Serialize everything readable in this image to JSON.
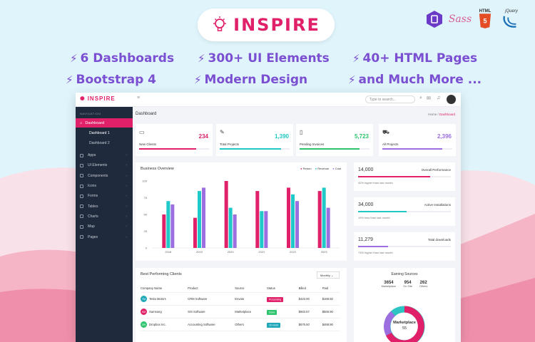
{
  "banner": {
    "logo_text": "INSPIRE",
    "features": [
      {
        "label": "6 Dashboards"
      },
      {
        "label": "300+ UI Elements"
      },
      {
        "label": "40+ HTML Pages"
      },
      {
        "label": "Bootstrap 4"
      },
      {
        "label": "Modern Design"
      },
      {
        "label": "and Much More ..."
      }
    ],
    "tech": {
      "sass": "Sass",
      "html": "HTML",
      "jquery": "jQuery"
    }
  },
  "app": {
    "brand": "INSPIRE",
    "search_placeholder": "Type to search...",
    "sidebar": {
      "nav_label": "NAVIGATION",
      "active": "Dashboard",
      "sub_items": [
        "Dashboard 1",
        "Dashboard 2"
      ],
      "items": [
        "Apps",
        "UI Elements",
        "Components",
        "Icons",
        "Forms",
        "Tables",
        "Charts",
        "Map",
        "Pages"
      ]
    },
    "page_title": "Dashboard",
    "breadcrumb": {
      "home": "Home /",
      "current": "Dashboard"
    },
    "stats": [
      {
        "label": "New Clients",
        "value": "234",
        "color": "#e02068",
        "progress": 0.82
      },
      {
        "label": "Total Projects",
        "value": "1,390",
        "color": "#20c9c9",
        "progress": 0.88
      },
      {
        "label": "Pending Invoices",
        "value": "5,723",
        "color": "#2ec46d",
        "progress": 0.86
      },
      {
        "label": "All Projects",
        "value": "2,396",
        "color": "#9b6fe0",
        "progress": 0.86
      }
    ],
    "business": {
      "title": "Business Overview",
      "legend": [
        "Return",
        "Revenue",
        "Cost"
      ]
    },
    "mini_cards": [
      {
        "value": "14,000",
        "title": "Overall Performance",
        "sub": "42% higher than last month",
        "color": "#e02068",
        "progress": 0.78
      },
      {
        "value": "34,000",
        "title": "Active Installations",
        "sub": "19% less than last month",
        "color": "#20c9c9",
        "progress": 0.52
      },
      {
        "value": "11,279",
        "title": "Total downloads",
        "sub": "73% higher than last month",
        "color": "#9b6fe0",
        "progress": 0.32
      }
    ],
    "clients": {
      "title": "Best Performing Clients",
      "dropdown": "Monthly",
      "headers": [
        "Company Name",
        "Product",
        "Source",
        "Status",
        "Billed",
        "Paid"
      ],
      "rows": [
        {
          "initials": "TM",
          "avatar_color": "#20a7b8",
          "company": "Tesla Motors",
          "product": "CRM Software",
          "source": "Envato",
          "status": "Processing",
          "status_color": "#e02068",
          "billed": "$423.00",
          "paid": "$168.50"
        },
        {
          "initials": "SM",
          "avatar_color": "#e02068",
          "company": "Samsung",
          "product": "SIS Software",
          "source": "Marketplace",
          "status": "Done",
          "status_color": "#2ec46d",
          "billed": "$663.57",
          "paid": "$566.90"
        },
        {
          "initials": "DR",
          "avatar_color": "#2ec46d",
          "company": "Dropbox Inc.",
          "product": "Accounting Software",
          "source": "Others",
          "status": "On Hold",
          "status_color": "#20a7b8",
          "billed": "$676.50",
          "paid": "$468.90"
        }
      ]
    },
    "earning": {
      "title": "Earning Sources",
      "stats": [
        {
          "value": "3654",
          "label": "Marketplace"
        },
        {
          "value": "954",
          "label": "On Site"
        },
        {
          "value": "262",
          "label": "Others"
        }
      ],
      "donut_label": "Marketplace",
      "donut_value": "55"
    }
  },
  "chart_data": {
    "type": "bar",
    "categories": [
      "2018",
      "2019",
      "2020",
      "2021",
      "2022",
      "2023"
    ],
    "series": [
      {
        "name": "Return",
        "values": [
          50,
          45,
          100,
          85,
          90,
          85
        ],
        "color": "#e02068"
      },
      {
        "name": "Revenue",
        "values": [
          70,
          85,
          60,
          55,
          80,
          90
        ],
        "color": "#20c9c9"
      },
      {
        "name": "Cost",
        "values": [
          65,
          90,
          50,
          55,
          70,
          60
        ],
        "color": "#9b6fe0"
      }
    ],
    "ylim": [
      0,
      100
    ],
    "yticks": [
      0,
      25,
      50,
      75,
      100
    ],
    "legend": "top-right"
  }
}
